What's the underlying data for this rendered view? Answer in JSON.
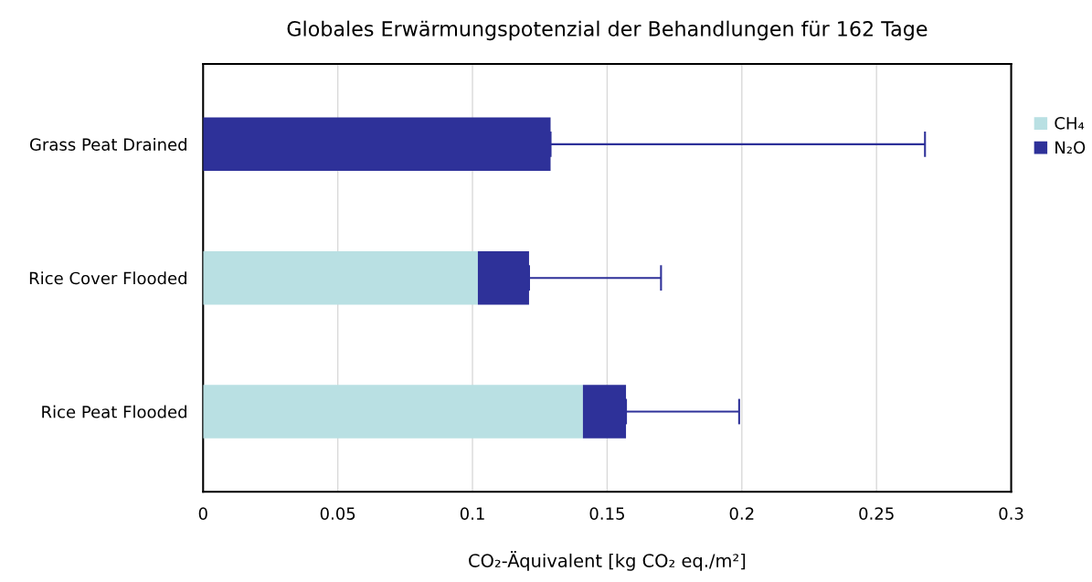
{
  "chart_data": {
    "type": "bar",
    "orientation": "horizontal",
    "stacked": true,
    "title": "Globales Erwärmungspotenzial der Behandlungen für 162 Tage",
    "xlabel": "CO₂-Äquivalent [kg CO₂ eq./m²]",
    "categories": [
      "Grass Peat Drained",
      "Rice Cover Flooded",
      "Rice Peat Flooded"
    ],
    "series": [
      {
        "name": "CH₄",
        "color": "#b9e0e3",
        "values": [
          0,
          0.102,
          0.141
        ]
      },
      {
        "name": "N₂O",
        "color": "#2e3199",
        "values": [
          0.129,
          0.019,
          0.016
        ],
        "errors": [
          [
            0.129,
            0.268
          ],
          [
            0.121,
            0.17
          ],
          [
            0.157,
            0.199
          ]
        ]
      }
    ],
    "xlim": [
      0,
      0.3
    ],
    "xticks": [
      0,
      0.05,
      0.1,
      0.15,
      0.2,
      0.25,
      0.3
    ],
    "grid": "x",
    "legend": "right"
  }
}
